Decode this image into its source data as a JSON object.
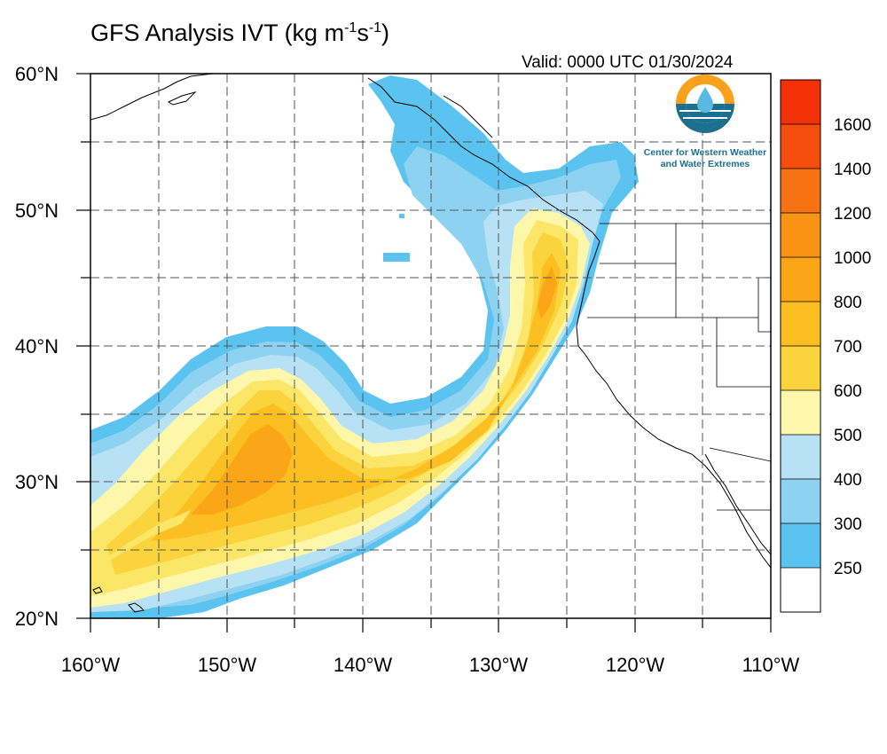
{
  "title": {
    "main": "GFS Analysis IVT (kg m",
    "sup1": "-1",
    "mid": "s",
    "sup2": "-1",
    "end": ")"
  },
  "valid": "Valid: 0000 UTC 01/30/2024",
  "logo": {
    "icon": "water-drop-logo-icon",
    "line1": "Center for Western Weather",
    "line2": "and Water Extremes"
  },
  "colors": {
    "250": "#5bc3f0",
    "300": "#8ed2f2",
    "400": "#b7e1f5",
    "500": "#fdf7ab",
    "600": "#fbe667",
    "700": "#fbd33c",
    "800": "#fbbf22",
    "1000": "#fba616",
    "1200": "#f99314",
    "1400": "#f77212",
    "1600": "#f54d0e",
    "1800": "#f33006"
  },
  "colorbar": {
    "labels": [
      "250",
      "300",
      "400",
      "500",
      "600",
      "700",
      "800",
      "1000",
      "1200",
      "1400",
      "1600"
    ]
  },
  "map": {
    "lon_labels": [
      "160°W",
      "150°W",
      "140°W",
      "130°W",
      "120°W",
      "110°W"
    ],
    "lat_labels": [
      "20°N",
      "30°N",
      "40°N",
      "50°N",
      "60°N"
    ],
    "lon_range": [
      -160,
      -110
    ],
    "lat_range": [
      20,
      60
    ]
  }
}
